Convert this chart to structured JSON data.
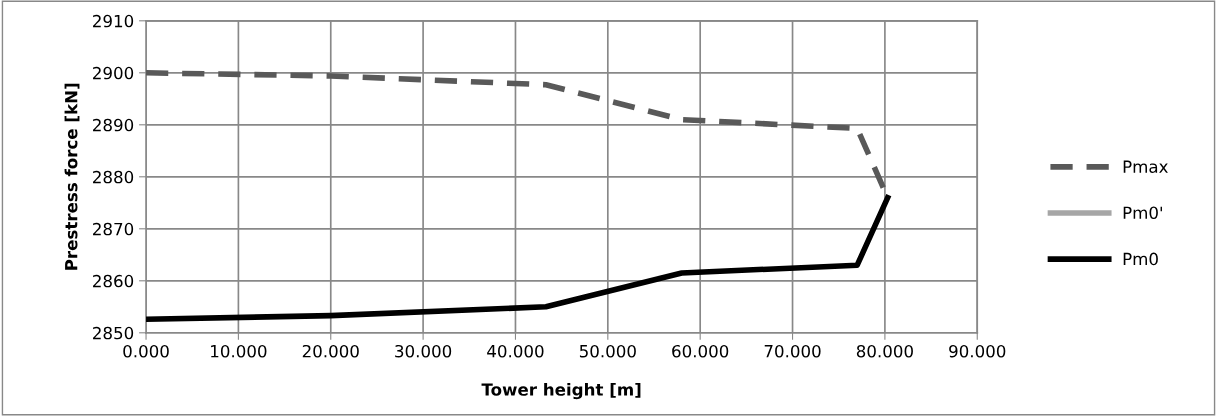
{
  "chart_data": {
    "type": "line",
    "xlabel": "Tower height [m]",
    "ylabel": "Prestress force [kN]",
    "xlim": [
      0,
      90
    ],
    "xticks": [
      {
        "value": 0,
        "label": "0.000"
      },
      {
        "value": 10,
        "label": "10.000"
      },
      {
        "value": 20,
        "label": "20.000"
      },
      {
        "value": 30,
        "label": "30.000"
      },
      {
        "value": 40,
        "label": "40.000"
      },
      {
        "value": 50,
        "label": "50.000"
      },
      {
        "value": 60,
        "label": "60.000"
      },
      {
        "value": 70,
        "label": "70.000"
      },
      {
        "value": 80,
        "label": "80.000"
      },
      {
        "value": 90,
        "label": "90.000"
      }
    ],
    "ylim": [
      2850,
      2910
    ],
    "yticks": [
      2850,
      2860,
      2870,
      2880,
      2890,
      2900,
      2910
    ],
    "grid": true,
    "legend": "right",
    "marker": "none",
    "series": [
      {
        "name": "Pmax",
        "color": "#595959",
        "line_style": "dashed",
        "x": [
          0,
          20,
          43.3,
          58,
          77,
          80.3
        ],
        "values": [
          2900,
          2899.4,
          2897.7,
          2891,
          2889.3,
          2876
        ]
      },
      {
        "name": "Pm0'",
        "color": "#a6a6a6",
        "line_style": "solid",
        "values": [
          null,
          null,
          null,
          null,
          null,
          null
        ]
      },
      {
        "name": "Pm0",
        "color": "#000000",
        "line_style": "solid",
        "x": [
          0,
          20,
          43.3,
          58,
          77,
          80.3
        ],
        "values": [
          2852.6,
          2853.3,
          2855,
          2861.5,
          2863,
          2876
        ]
      }
    ]
  }
}
